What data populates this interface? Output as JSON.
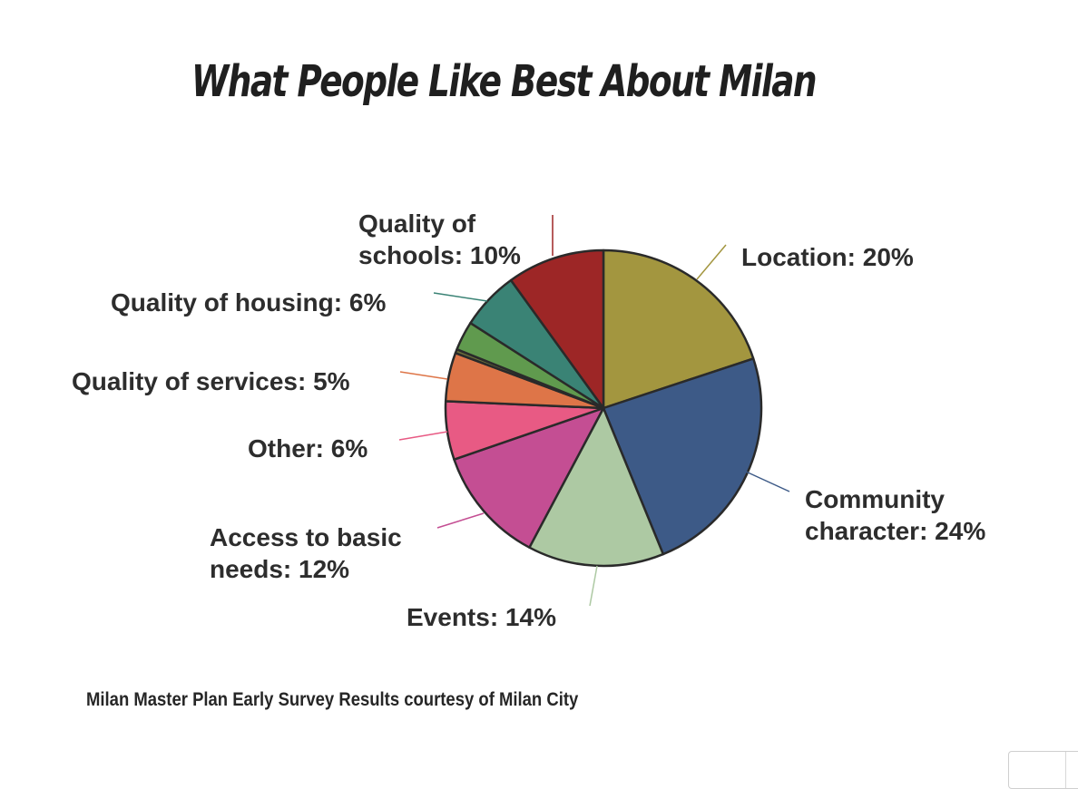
{
  "chart_data": {
    "type": "pie",
    "title": "What People Like Best About Milan",
    "caption": "Milan Master Plan Early Survey Results courtesy of Milan City",
    "slices": [
      {
        "label": "Location",
        "value": 20,
        "color": "#a3963f",
        "text": [
          "Location: 20%"
        ]
      },
      {
        "label": "Community character",
        "value": 24,
        "color": "#3d5a87",
        "text": [
          "Community",
          "character: 24%"
        ]
      },
      {
        "label": "Events",
        "value": 14,
        "color": "#adc9a3",
        "text": [
          "Events: 14%"
        ]
      },
      {
        "label": "Access to basic needs",
        "value": 12,
        "color": "#c44e93",
        "text": [
          "Access to basic",
          "needs: 12%"
        ]
      },
      {
        "label": "Other",
        "value": 6,
        "color": "#e85a84",
        "text": [
          "Other: 6%"
        ]
      },
      {
        "label": "Quality of services",
        "value": 5,
        "color": "#de7548",
        "text": [
          "Quality of services: 5%"
        ]
      },
      {
        "label": "",
        "value": 0.4,
        "color": "#6b6f3a",
        "text": []
      },
      {
        "label": "",
        "value": 3,
        "color": "#609a4e",
        "text": []
      },
      {
        "label": "Quality of housing",
        "value": 6,
        "color": "#3a8375",
        "text": [
          "Quality of housing: 6%"
        ]
      },
      {
        "label": "Quality of schools",
        "value": 10,
        "color": "#9d2626",
        "text": [
          "Quality of",
          "schools: 10%"
        ]
      }
    ]
  }
}
